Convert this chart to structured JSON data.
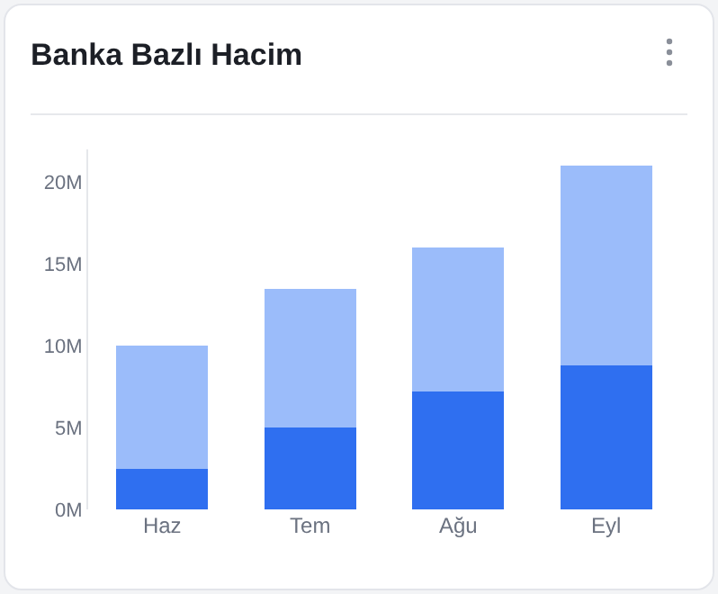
{
  "chart_data": {
    "type": "bar",
    "title": "Banka Bazlı Hacim",
    "stacked": true,
    "categories": [
      "Haz",
      "Tem",
      "Ağu",
      "Eyl"
    ],
    "series": [
      {
        "color": "#2f6ff0",
        "values": [
          2.5,
          5,
          7.2,
          8.8
        ]
      },
      {
        "color": "#9bbcfa",
        "values": [
          7.5,
          8.5,
          8.8,
          12.2
        ]
      }
    ],
    "ylim": [
      0,
      22
    ],
    "yticks": [
      {
        "value": 0,
        "label": "0M"
      },
      {
        "value": 5,
        "label": "5M"
      },
      {
        "value": 10,
        "label": "10M"
      },
      {
        "value": 15,
        "label": "15M"
      },
      {
        "value": 20,
        "label": "20M"
      }
    ],
    "grid": false
  }
}
